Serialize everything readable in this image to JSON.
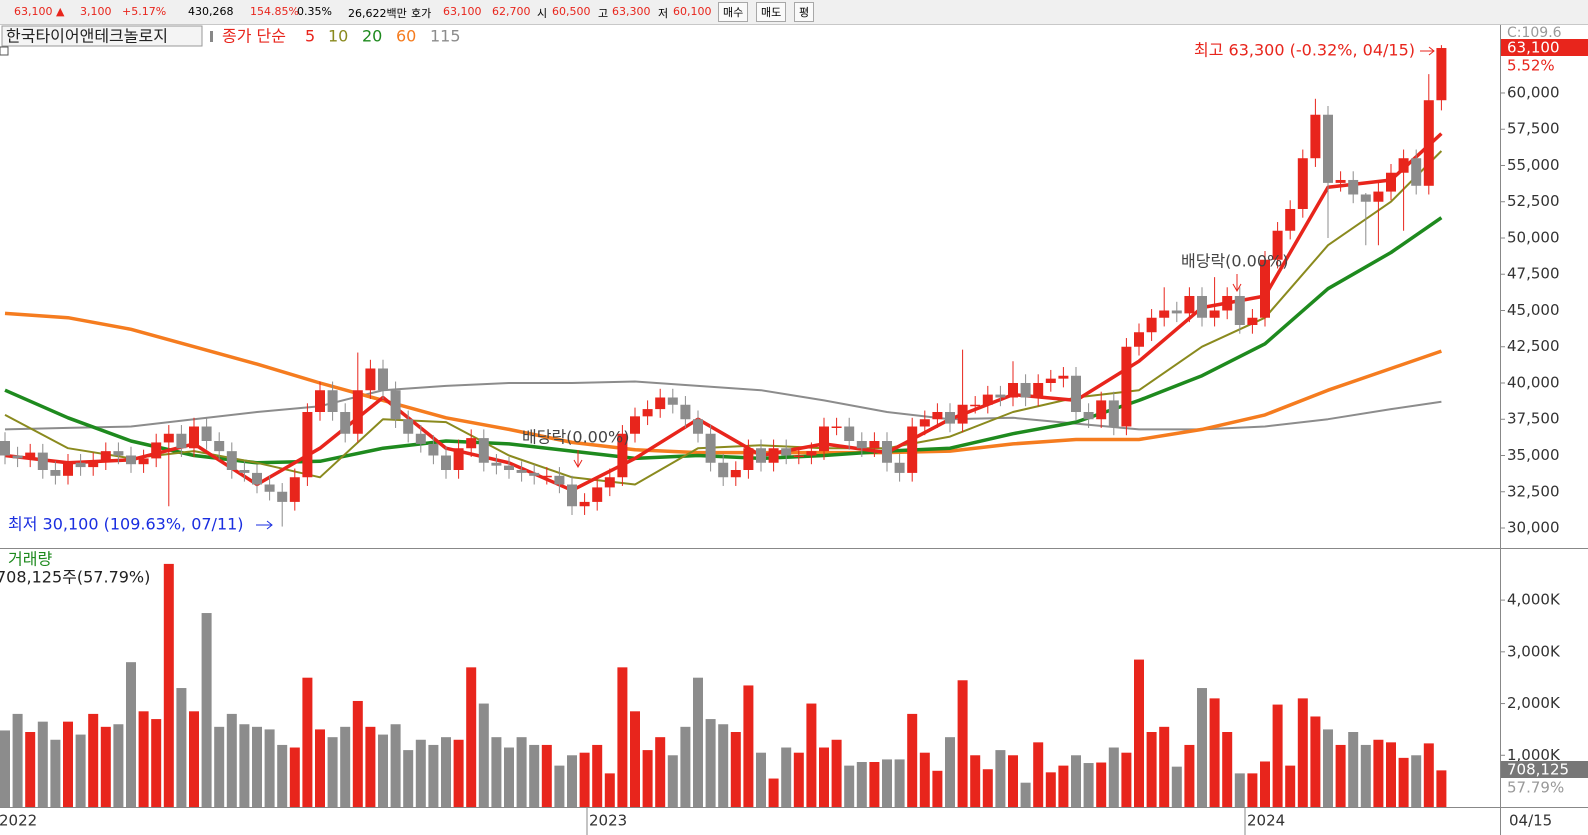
{
  "toolbar": {
    "price": "63,100 ▲",
    "change": "3,100",
    "rate": "+5.17%",
    "volume": "430,268",
    "vol_rate": "154.85%",
    "turnover": "0.35%",
    "amount": "26,622백만",
    "quote_label": "호가",
    "ask": "63,100",
    "bid": "62,700",
    "open_label": "시",
    "open": "60,500",
    "high_label": "고",
    "high": "63,300",
    "low_label": "저",
    "low": "60,100",
    "buttons": [
      "매수",
      "매도",
      "평"
    ]
  },
  "legend": {
    "name": "한국타이어앤테크놀로지",
    "ma_label": "종가 단순"
  },
  "chart_data": [
    {
      "type": "candlestick",
      "up_color": "#e8251c",
      "down_color": "#8c8c8c",
      "ylim": [
        28690,
        64550
      ],
      "yticks": [
        {
          "value": 30000,
          "label": "30,000"
        },
        {
          "value": 32500,
          "label": "32,500"
        },
        {
          "value": 35000,
          "label": "35,000"
        },
        {
          "value": 37500,
          "label": "37,500"
        },
        {
          "value": 40000,
          "label": "40,000"
        },
        {
          "value": 42500,
          "label": "42,500"
        },
        {
          "value": 45000,
          "label": "45,000"
        },
        {
          "value": 47500,
          "label": "47,500"
        },
        {
          "value": 50000,
          "label": "50,000"
        },
        {
          "value": 52500,
          "label": "52,500"
        },
        {
          "value": 55000,
          "label": "55,000"
        },
        {
          "value": 57500,
          "label": "57,500"
        },
        {
          "value": 60000,
          "label": "60,000"
        }
      ],
      "grid": false,
      "x_labels": [
        "2022",
        "2023",
        "2024",
        "04/15"
      ],
      "open": [
        36000,
        35000,
        34800,
        35200,
        34000,
        33600,
        34500,
        34200,
        34600,
        35300,
        35000,
        34400,
        34800,
        35900,
        36500,
        35500,
        37000,
        36000,
        35300,
        34000,
        33800,
        33000,
        32500,
        31800,
        33500,
        38000,
        39500,
        38000,
        36500,
        39500,
        41000,
        39500,
        37500,
        36500,
        35800,
        35000,
        34000,
        35500,
        36200,
        34500,
        34300,
        34000,
        33800,
        33600,
        33600,
        33000,
        31500,
        31800,
        32800,
        33500,
        36500,
        37700,
        38200,
        39000,
        38500,
        37500,
        36500,
        34500,
        33500,
        34000,
        35500,
        34500,
        35500,
        35000,
        35000,
        35300,
        37000,
        37000,
        36000,
        35500,
        36000,
        34500,
        33800,
        37000,
        37500,
        38000,
        37200,
        38500,
        38500,
        39200,
        39000,
        40000,
        39000,
        40000,
        40300,
        40500,
        38000,
        37500,
        38800,
        37000,
        42500,
        43500,
        44500,
        45000,
        44800,
        46000,
        44500,
        45000,
        46000,
        44000,
        44500,
        48500,
        50500,
        52000,
        55500,
        58500,
        53800,
        54000,
        53000,
        52500,
        53200,
        54500,
        55500,
        53600,
        59500
      ],
      "high": [
        36600,
        35600,
        35800,
        35800,
        34600,
        35100,
        35100,
        35200,
        35900,
        35900,
        35600,
        35400,
        36500,
        37100,
        37100,
        37600,
        37600,
        36600,
        35900,
        34600,
        34400,
        33600,
        33100,
        34100,
        38600,
        40100,
        40100,
        38600,
        42100,
        41600,
        41600,
        40100,
        38100,
        37100,
        36400,
        35600,
        36100,
        36800,
        36800,
        35100,
        34900,
        34600,
        34400,
        34200,
        34200,
        33600,
        32400,
        33400,
        34100,
        37100,
        38300,
        38800,
        39600,
        39600,
        39100,
        38100,
        37100,
        35100,
        34600,
        36100,
        36100,
        36100,
        36100,
        35600,
        35900,
        37600,
        37600,
        37600,
        36600,
        36600,
        36600,
        35100,
        37600,
        38100,
        38600,
        38600,
        42300,
        39100,
        39800,
        39800,
        41500,
        40600,
        40600,
        40900,
        41100,
        41100,
        38600,
        39400,
        39400,
        43100,
        44100,
        45100,
        46600,
        45600,
        46600,
        46600,
        47300,
        46600,
        46600,
        45100,
        49100,
        51100,
        52600,
        56100,
        59600,
        59100,
        54600,
        54600,
        53100,
        53800,
        55100,
        56100,
        56100,
        61300,
        63300
      ],
      "low": [
        34400,
        34200,
        34200,
        33400,
        33000,
        33000,
        33600,
        33600,
        34000,
        34400,
        33800,
        33800,
        34200,
        31500,
        34900,
        34900,
        35400,
        34700,
        33400,
        33200,
        32400,
        31900,
        30100,
        31200,
        32900,
        37400,
        37400,
        35900,
        35900,
        38900,
        38900,
        36900,
        35900,
        35200,
        34400,
        33400,
        33400,
        34900,
        33900,
        33700,
        33400,
        33200,
        33000,
        33000,
        32400,
        30900,
        30900,
        31200,
        32200,
        32900,
        35900,
        37100,
        37600,
        37900,
        36900,
        35900,
        33900,
        32900,
        32900,
        33400,
        33900,
        33900,
        34400,
        34400,
        34400,
        34700,
        36400,
        35400,
        34900,
        34900,
        33900,
        33200,
        33200,
        36400,
        36900,
        36600,
        36600,
        37900,
        37900,
        38400,
        38400,
        38400,
        38400,
        39400,
        39700,
        37400,
        36900,
        36900,
        36400,
        36400,
        41900,
        42900,
        43900,
        44200,
        44200,
        43900,
        43900,
        44400,
        43400,
        43400,
        43900,
        47900,
        49900,
        51400,
        54900,
        50000,
        53200,
        52400,
        49500,
        49500,
        52600,
        50500,
        53000,
        53000,
        58800
      ],
      "close": [
        35000,
        34800,
        35200,
        34000,
        33600,
        34500,
        34200,
        34600,
        35300,
        35000,
        34400,
        34800,
        35900,
        36500,
        35500,
        37000,
        36000,
        35300,
        34000,
        33800,
        33000,
        32500,
        31800,
        33500,
        38000,
        39500,
        38000,
        36500,
        39500,
        41000,
        39500,
        37500,
        36500,
        35800,
        35000,
        34000,
        35500,
        36200,
        34500,
        34300,
        34000,
        33800,
        33600,
        33600,
        33000,
        31500,
        31800,
        32800,
        33500,
        36500,
        37700,
        38200,
        39000,
        38500,
        37500,
        36500,
        34500,
        33500,
        34000,
        35500,
        34500,
        35500,
        35000,
        35000,
        35300,
        37000,
        37000,
        36000,
        35500,
        36000,
        34500,
        33800,
        37000,
        37500,
        38000,
        37200,
        38500,
        38500,
        39200,
        39000,
        40000,
        39000,
        40000,
        40300,
        40500,
        38000,
        37500,
        38800,
        37000,
        42500,
        43500,
        44500,
        45000,
        44800,
        46000,
        44500,
        45000,
        46000,
        44000,
        44500,
        48500,
        50500,
        52000,
        55500,
        58500,
        53800,
        54000,
        53000,
        52500,
        53200,
        54500,
        55500,
        53600,
        59500,
        63100
      ],
      "series": [
        {
          "name": "5",
          "color": "#e8251c",
          "width": 3.5,
          "x": [
            0,
            5,
            10,
            15,
            20,
            25,
            30,
            35,
            40,
            45,
            50,
            55,
            60,
            65,
            70,
            75,
            80,
            85,
            90,
            95,
            100,
            105,
            110,
            114
          ],
          "values": [
            35000,
            34500,
            34700,
            35800,
            33000,
            35500,
            39000,
            35500,
            34500,
            32600,
            34800,
            37500,
            35000,
            35800,
            35200,
            37500,
            39200,
            38800,
            41500,
            45200,
            46000,
            53500,
            54000,
            57200
          ]
        },
        {
          "name": "10",
          "color": "#8a8a1e",
          "width": 2,
          "x": [
            0,
            5,
            10,
            15,
            20,
            25,
            30,
            35,
            40,
            45,
            50,
            55,
            60,
            65,
            70,
            75,
            80,
            85,
            90,
            95,
            100,
            105,
            110,
            114
          ],
          "values": [
            37800,
            35500,
            34800,
            35300,
            34500,
            33500,
            37500,
            37300,
            35000,
            33500,
            33000,
            35500,
            35700,
            35500,
            35500,
            36300,
            38000,
            39000,
            39500,
            42500,
            44500,
            49500,
            52500,
            56000
          ]
        },
        {
          "name": "20",
          "color": "#1e8a1e",
          "width": 3.5,
          "x": [
            0,
            5,
            10,
            15,
            20,
            25,
            30,
            35,
            40,
            45,
            50,
            55,
            60,
            65,
            70,
            75,
            80,
            85,
            90,
            95,
            100,
            105,
            110,
            114
          ],
          "values": [
            39500,
            37600,
            36000,
            35000,
            34500,
            34600,
            35500,
            36000,
            35800,
            35300,
            34800,
            35000,
            34800,
            35000,
            35300,
            35500,
            36500,
            37300,
            38800,
            40500,
            42700,
            46500,
            49000,
            51400
          ]
        },
        {
          "name": "60",
          "color": "#f57c1f",
          "width": 3.5,
          "x": [
            0,
            5,
            10,
            15,
            20,
            25,
            30,
            35,
            40,
            45,
            50,
            55,
            60,
            65,
            70,
            75,
            80,
            85,
            90,
            95,
            100,
            105,
            110,
            114
          ],
          "values": [
            44800,
            44500,
            43700,
            42500,
            41300,
            40000,
            38800,
            37600,
            36800,
            35900,
            35400,
            35200,
            35200,
            35200,
            35200,
            35300,
            35800,
            36100,
            36100,
            36800,
            37800,
            39500,
            41000,
            42200
          ]
        },
        {
          "name": "115",
          "color": "#8c8c8c",
          "width": 2,
          "x": [
            0,
            5,
            10,
            15,
            20,
            25,
            30,
            35,
            40,
            45,
            50,
            55,
            60,
            65,
            70,
            75,
            80,
            85,
            90,
            95,
            100,
            105,
            110,
            114
          ],
          "values": [
            36800,
            36900,
            37000,
            37500,
            38000,
            38400,
            39500,
            39800,
            40000,
            40000,
            40100,
            39800,
            39500,
            38800,
            38000,
            37500,
            37600,
            37200,
            36800,
            36800,
            37000,
            37500,
            38200,
            38700
          ]
        }
      ],
      "annotations": {
        "high": "최고 63,300 (-0.32%, 04/15)",
        "low": "최저 30,100 (109.63%, 07/11)",
        "dividend": [
          "배당락(0.00%)",
          "배당락(0.00%)"
        ]
      },
      "tags": {
        "top": "C:109.6",
        "last": "63,100",
        "pct": "5.52%"
      }
    },
    {
      "type": "bar",
      "title": "거래량",
      "subtitle": "708,125주(57.79%)",
      "ylim": [
        0,
        4930
      ],
      "yticks": [
        {
          "value": 1000,
          "label": "1,000K"
        },
        {
          "value": 2000,
          "label": "2,000K"
        },
        {
          "value": 3000,
          "label": "3,000K"
        },
        {
          "value": 4000,
          "label": "4,000K"
        }
      ],
      "values": [
        1480,
        1800,
        1450,
        1650,
        1300,
        1650,
        1400,
        1800,
        1550,
        1600,
        2800,
        1850,
        1700,
        4700,
        2300,
        1850,
        3750,
        1550,
        1800,
        1600,
        1550,
        1500,
        1200,
        1150,
        2500,
        1500,
        1350,
        1550,
        2050,
        1550,
        1400,
        1600,
        1100,
        1300,
        1200,
        1350,
        1300,
        2700,
        2000,
        1350,
        1150,
        1350,
        1200,
        1200,
        800,
        1000,
        1050,
        1200,
        650,
        2700,
        1850,
        1100,
        1350,
        1000,
        1550,
        2500,
        1700,
        1600,
        1450,
        2350,
        1050,
        550,
        1150,
        1050,
        2000,
        1150,
        1300,
        800,
        870,
        870,
        920,
        920,
        1800,
        1050,
        700,
        1350,
        2450,
        1000,
        730,
        1100,
        1000,
        470,
        1250,
        670,
        800,
        1000,
        850,
        860,
        1150,
        1050,
        2850,
        1450,
        1550,
        780,
        1200,
        2300,
        2100,
        1450,
        650,
        650,
        880,
        1980,
        800,
        2100,
        1750,
        1500,
        1200,
        1450,
        1200,
        1300,
        1250,
        950,
        1000,
        1230,
        708.125
      ],
      "tags": {
        "last": "708,125",
        "pct": "57.79%"
      }
    }
  ]
}
